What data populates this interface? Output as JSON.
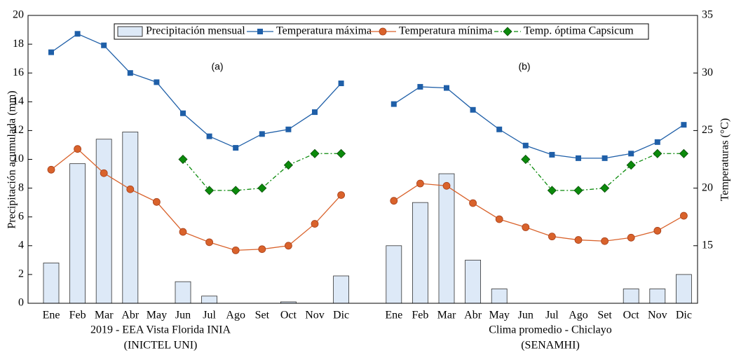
{
  "chart_data": {
    "type": "combo",
    "categories": [
      "Ene",
      "Feb",
      "Mar",
      "Abr",
      "May",
      "Jun",
      "Jul",
      "Ago",
      "Set",
      "Oct",
      "Nov",
      "Dic",
      null,
      "Ene",
      "Feb",
      "Mar",
      "Abr",
      "May",
      "Jun",
      "Jul",
      "Ago",
      "Set",
      "Oct",
      "Nov",
      "Dic"
    ],
    "x_groups": [
      [
        "2019 - EEA Vista Florida INIA",
        "(INICTEL UNI)"
      ],
      [
        "Clima promedio - Chiclayo",
        "(SENAMHI)"
      ]
    ],
    "annotations": [
      "(a)",
      "(b)"
    ],
    "ylabel": "Precipitación acumulada (mm)",
    "y2label": "Temperaturas (°C)",
    "ylim": [
      0,
      20
    ],
    "yticks": [
      0,
      2,
      4,
      6,
      8,
      10,
      12,
      14,
      16,
      18,
      20
    ],
    "y2lim": [
      10,
      35
    ],
    "y2ticks": [
      15,
      20,
      25,
      30,
      35
    ],
    "series": [
      {
        "name": "Precipitación mensual",
        "type": "bar",
        "color": "#dde9f7",
        "values": [
          2.8,
          9.7,
          11.4,
          11.9,
          0,
          1.5,
          0.5,
          0,
          0,
          0.1,
          0,
          1.9,
          null,
          4,
          7,
          9,
          3,
          1,
          0,
          0,
          0,
          0,
          1,
          1,
          2
        ]
      },
      {
        "name": "Temperatura máxima",
        "type": "line",
        "axis": "y2",
        "marker": "square",
        "color": "#1f5fa8",
        "values": [
          31.8,
          33.4,
          32.4,
          30.0,
          29.2,
          26.5,
          24.5,
          23.5,
          24.7,
          25.1,
          26.6,
          29.1,
          null,
          27.3,
          28.8,
          28.7,
          26.8,
          25.1,
          23.7,
          22.9,
          22.6,
          22.6,
          23.0,
          24.0,
          25.5
        ]
      },
      {
        "name": "Temperatura mínima",
        "type": "line",
        "axis": "y2",
        "marker": "circle",
        "color": "#d9622b",
        "values": [
          21.6,
          23.4,
          21.3,
          19.9,
          18.8,
          16.2,
          15.3,
          14.6,
          14.7,
          15.0,
          16.9,
          19.4,
          null,
          18.9,
          20.4,
          20.2,
          18.7,
          17.3,
          16.6,
          15.8,
          15.5,
          15.4,
          15.7,
          16.3,
          17.6
        ]
      },
      {
        "name": "Temp. óptima Capsicum",
        "type": "line",
        "axis": "y2",
        "marker": "diamond",
        "dash": true,
        "color": "#0b8a0b",
        "values": [
          null,
          null,
          null,
          null,
          null,
          22.5,
          19.8,
          19.8,
          20,
          22,
          23,
          23,
          null,
          null,
          null,
          null,
          null,
          null,
          22.5,
          19.8,
          19.8,
          20,
          22,
          23,
          23
        ]
      }
    ]
  }
}
